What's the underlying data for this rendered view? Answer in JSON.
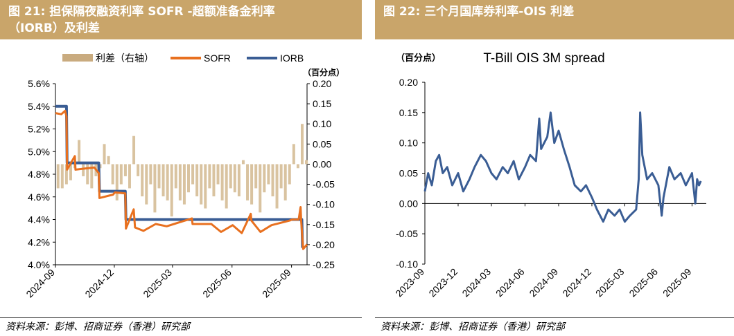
{
  "left_panel": {
    "title_line1": "图 21:  担保隔夜融资利率 SOFR -超额准备金利率",
    "title_line2": "（IORB）及利差",
    "source": "资料来源：彭博、招商证券（香港）研究部",
    "chart_data": {
      "type": "line",
      "title": "",
      "legend": {
        "placement": "top",
        "entries": [
          {
            "name": "利差（右轴）",
            "color": "#c9ab7f",
            "kind": "bar"
          },
          {
            "name": "SOFR",
            "color": "#e8701f",
            "kind": "line"
          },
          {
            "name": "IORB",
            "color": "#3a5d94",
            "kind": "line"
          }
        ]
      },
      "left_axis": {
        "ylim": [
          4.0,
          5.6
        ],
        "ticks": [
          "4.0%",
          "4.2%",
          "4.4%",
          "4.6%",
          "4.8%",
          "5.0%",
          "5.2%",
          "5.4%",
          "5.6%"
        ]
      },
      "right_axis": {
        "unit_label": "（百分点）",
        "ylim": [
          -0.25,
          0.2
        ],
        "ticks": [
          "-0.25",
          "-0.20",
          "-0.15",
          "-0.10",
          "-0.05",
          "0.00",
          "0.05",
          "0.10",
          "0.15",
          "0.20"
        ]
      },
      "x_ticks": [
        "2024-09",
        "2024-12",
        "2025-03",
        "2025-06",
        "2025-09"
      ],
      "x_range": [
        "2024-09-01",
        "2025-09-25"
      ],
      "series": [
        {
          "name": "IORB",
          "points": [
            [
              "2024-09-01",
              5.4
            ],
            [
              "2024-09-18",
              5.4
            ],
            [
              "2024-09-19",
              4.9
            ],
            [
              "2024-11-07",
              4.9
            ],
            [
              "2024-11-08",
              4.65
            ],
            [
              "2024-12-18",
              4.65
            ],
            [
              "2024-12-19",
              4.4
            ],
            [
              "2025-09-17",
              4.4
            ],
            [
              "2025-09-18",
              4.15
            ]
          ]
        },
        {
          "name": "SOFR",
          "points": [
            [
              "2024-09-01",
              5.34
            ],
            [
              "2024-09-10",
              5.33
            ],
            [
              "2024-09-16",
              5.36
            ],
            [
              "2024-09-18",
              5.31
            ],
            [
              "2024-09-19",
              4.84
            ],
            [
              "2024-10-01",
              4.96
            ],
            [
              "2024-10-02",
              4.84
            ],
            [
              "2024-10-31",
              4.86
            ],
            [
              "2024-11-07",
              4.81
            ],
            [
              "2024-11-08",
              4.59
            ],
            [
              "2024-11-29",
              4.62
            ],
            [
              "2024-12-02",
              4.64
            ],
            [
              "2024-12-18",
              4.63
            ],
            [
              "2024-12-19",
              4.32
            ],
            [
              "2024-12-31",
              4.49
            ],
            [
              "2025-01-02",
              4.33
            ],
            [
              "2025-01-15",
              4.3
            ],
            [
              "2025-02-03",
              4.36
            ],
            [
              "2025-02-20",
              4.34
            ],
            [
              "2025-03-31",
              4.41
            ],
            [
              "2025-04-01",
              4.36
            ],
            [
              "2025-04-30",
              4.36
            ],
            [
              "2025-05-15",
              4.29
            ],
            [
              "2025-06-02",
              4.35
            ],
            [
              "2025-06-16",
              4.28
            ],
            [
              "2025-06-30",
              4.45
            ],
            [
              "2025-07-01",
              4.39
            ],
            [
              "2025-07-15",
              4.29
            ],
            [
              "2025-08-01",
              4.35
            ],
            [
              "2025-08-29",
              4.39
            ],
            [
              "2025-09-02",
              4.4
            ],
            [
              "2025-09-12",
              4.4
            ],
            [
              "2025-09-15",
              4.51
            ],
            [
              "2025-09-16",
              4.38
            ],
            [
              "2025-09-19",
              4.14
            ],
            [
              "2025-09-25",
              4.18
            ]
          ]
        }
      ],
      "spread_bars": {
        "name": "利差（右轴）",
        "values_pct_pt": [
          -0.06,
          -0.06,
          -0.05,
          -0.04,
          -0.01,
          0.06,
          -0.03,
          -0.05,
          -0.06,
          -0.03,
          -0.01,
          0.05,
          0.02,
          -0.05,
          -0.09,
          -0.05,
          -0.03,
          -0.06,
          0.07,
          -0.03,
          -0.08,
          -0.1,
          -0.05,
          -0.12,
          -0.06,
          -0.08,
          -0.09,
          -0.13,
          -0.06,
          -0.09,
          -0.1,
          -0.07,
          -0.05,
          -0.08,
          -0.1,
          -0.11,
          -0.06,
          -0.08,
          -0.05,
          -0.09,
          -0.11,
          -0.06,
          -0.07,
          -0.08,
          0.01,
          -0.09,
          -0.1,
          -0.06,
          -0.12,
          -0.07,
          -0.05,
          -0.08,
          -0.11,
          -0.06,
          -0.09,
          -0.05,
          0.05,
          -0.01,
          0.1,
          0.01
        ]
      }
    }
  },
  "right_panel": {
    "title": "图 22:  三个月国库券利率-OIS 利差",
    "source": "资料来源：彭博、招商证券（香港）研究部",
    "chart_data": {
      "type": "line",
      "title": "T-Bill OIS 3M spread",
      "y_unit_label": "（百分点）",
      "ylim": [
        -0.1,
        0.2
      ],
      "y_ticks": [
        "-0.10",
        "-0.05",
        "0.00",
        "0.05",
        "0.10",
        "0.15",
        "0.20"
      ],
      "x_ticks": [
        "2023-09",
        "2023-12",
        "2024-03",
        "2024-06",
        "2024-09",
        "2024-12",
        "2025-03",
        "2025-06",
        "2025-09"
      ],
      "x_range": [
        "2023-09-01",
        "2025-10-10"
      ],
      "series": [
        {
          "name": "",
          "color": "#3a5d94",
          "points": [
            [
              "2023-09-01",
              0.02
            ],
            [
              "2023-09-10",
              0.05
            ],
            [
              "2023-09-20",
              0.03
            ],
            [
              "2023-10-01",
              0.07
            ],
            [
              "2023-10-10",
              0.08
            ],
            [
              "2023-10-20",
              0.05
            ],
            [
              "2023-11-01",
              0.06
            ],
            [
              "2023-11-15",
              0.03
            ],
            [
              "2023-12-01",
              0.05
            ],
            [
              "2023-12-15",
              0.02
            ],
            [
              "2024-01-01",
              0.04
            ],
            [
              "2024-01-15",
              0.06
            ],
            [
              "2024-02-01",
              0.08
            ],
            [
              "2024-02-15",
              0.07
            ],
            [
              "2024-03-01",
              0.05
            ],
            [
              "2024-03-15",
              0.04
            ],
            [
              "2024-04-01",
              0.06
            ],
            [
              "2024-04-15",
              0.05
            ],
            [
              "2024-05-01",
              0.07
            ],
            [
              "2024-05-15",
              0.04
            ],
            [
              "2024-06-01",
              0.06
            ],
            [
              "2024-06-15",
              0.08
            ],
            [
              "2024-07-01",
              0.07
            ],
            [
              "2024-07-10",
              0.14
            ],
            [
              "2024-07-15",
              0.09
            ],
            [
              "2024-08-01",
              0.11
            ],
            [
              "2024-08-10",
              0.15
            ],
            [
              "2024-08-20",
              0.1
            ],
            [
              "2024-09-01",
              0.12
            ],
            [
              "2024-09-15",
              0.09
            ],
            [
              "2024-10-01",
              0.06
            ],
            [
              "2024-10-15",
              0.03
            ],
            [
              "2024-11-01",
              0.02
            ],
            [
              "2024-11-15",
              0.03
            ],
            [
              "2024-12-01",
              0.01
            ],
            [
              "2024-12-15",
              -0.01
            ],
            [
              "2025-01-01",
              -0.03
            ],
            [
              "2025-01-15",
              -0.01
            ],
            [
              "2025-02-01",
              -0.02
            ],
            [
              "2025-02-15",
              -0.01
            ],
            [
              "2025-03-01",
              -0.03
            ],
            [
              "2025-03-15",
              -0.02
            ],
            [
              "2025-04-01",
              -0.01
            ],
            [
              "2025-04-08",
              0.04
            ],
            [
              "2025-04-12",
              0.15
            ],
            [
              "2025-04-18",
              0.08
            ],
            [
              "2025-05-01",
              0.04
            ],
            [
              "2025-05-15",
              0.05
            ],
            [
              "2025-06-01",
              0.03
            ],
            [
              "2025-06-10",
              -0.02
            ],
            [
              "2025-06-15",
              0.01
            ],
            [
              "2025-07-01",
              0.06
            ],
            [
              "2025-07-15",
              0.04
            ],
            [
              "2025-08-01",
              0.05
            ],
            [
              "2025-08-15",
              0.03
            ],
            [
              "2025-09-01",
              0.05
            ],
            [
              "2025-09-10",
              0.0
            ],
            [
              "2025-09-15",
              0.04
            ],
            [
              "2025-09-20",
              0.03
            ],
            [
              "2025-09-25",
              0.037
            ]
          ]
        }
      ]
    }
  }
}
